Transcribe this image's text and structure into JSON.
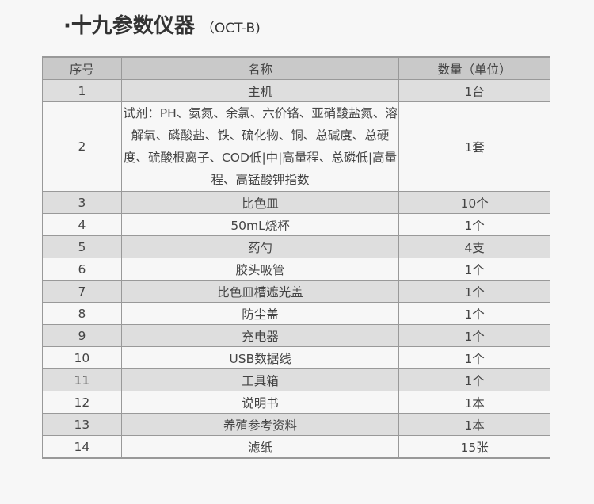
{
  "title": {
    "main": "·十九参数仪器",
    "sub": "（OCT-B)"
  },
  "headers": [
    "序号",
    "名称",
    "数量（单位）"
  ],
  "rows": [
    {
      "no": "1",
      "name": "主机",
      "qty": "1台"
    },
    {
      "no": "2",
      "name": "试剂：PH、氨氮、余氯、六价铬、亚硝酸盐氮、溶解氧、磷酸盐、铁、硫化物、铜、总碱度、总硬度、硫酸根离子、COD低|中|高量程、总磷低|高量程、高锰酸钾指数",
      "qty": "1套"
    },
    {
      "no": "3",
      "name": "比色皿",
      "qty": "10个"
    },
    {
      "no": "4",
      "name": "50mL烧杯",
      "qty": "1个"
    },
    {
      "no": "5",
      "name": "药勺",
      "qty": "4支"
    },
    {
      "no": "6",
      "name": "胶头吸管",
      "qty": "1个"
    },
    {
      "no": "7",
      "name": "比色皿槽遮光盖",
      "qty": "1个"
    },
    {
      "no": "8",
      "name": "防尘盖",
      "qty": "1个"
    },
    {
      "no": "9",
      "name": "充电器",
      "qty": "1个"
    },
    {
      "no": "10",
      "name": "USB数据线",
      "qty": "1个"
    },
    {
      "no": "11",
      "name": "工具箱",
      "qty": "1个"
    },
    {
      "no": "12",
      "name": "说明书",
      "qty": "1本"
    },
    {
      "no": "13",
      "name": "养殖参考资料",
      "qty": "1本"
    },
    {
      "no": "14",
      "name": "滤纸",
      "qty": "15张"
    }
  ]
}
